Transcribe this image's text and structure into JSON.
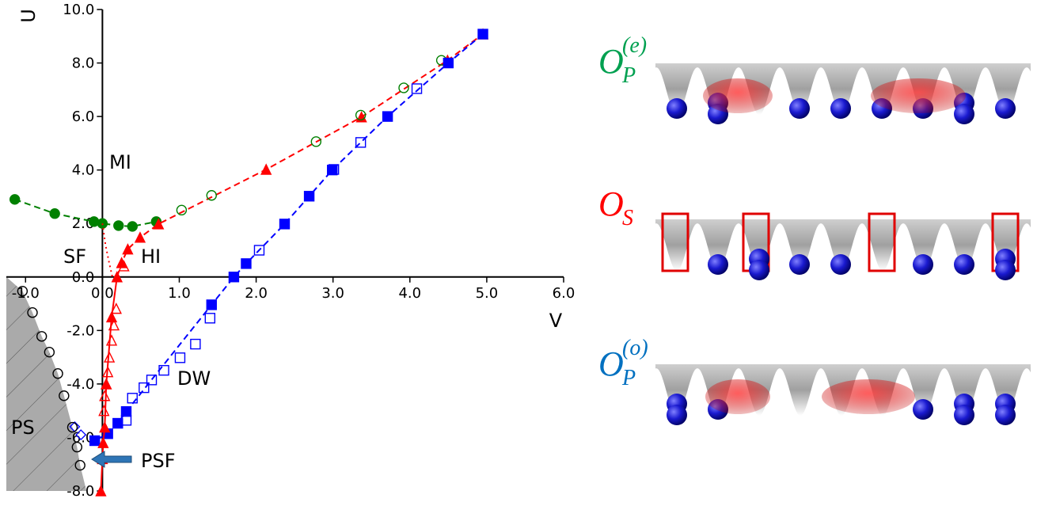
{
  "chart_data": {
    "type": "scatter",
    "xlabel": "V",
    "ylabel": "U",
    "xlim": [
      -1.25,
      6.0
    ],
    "ylim": [
      -8,
      10
    ],
    "xticks": [
      {
        "value": -1,
        "label": "-1.0"
      },
      {
        "value": 0,
        "label": "0.0"
      },
      {
        "value": 1,
        "label": "1.0"
      },
      {
        "value": 2,
        "label": "2.0"
      },
      {
        "value": 3,
        "label": "3.0"
      },
      {
        "value": 4,
        "label": "4.0"
      },
      {
        "value": 5,
        "label": "5.0"
      },
      {
        "value": 6,
        "label": "6.0"
      }
    ],
    "yticks": [
      {
        "value": -8,
        "label": "-8.0"
      },
      {
        "value": -6,
        "label": "-6.0"
      },
      {
        "value": -4,
        "label": "-4.0"
      },
      {
        "value": -2,
        "label": "-2.0"
      },
      {
        "value": 0,
        "label": "0.0"
      },
      {
        "value": 2,
        "label": "2.0"
      },
      {
        "value": 4,
        "label": "4.0"
      },
      {
        "value": 6,
        "label": "6.0"
      },
      {
        "value": 8,
        "label": "8.0"
      },
      {
        "value": 10,
        "label": "10.0"
      }
    ],
    "series": [
      {
        "color": "#008000",
        "marker": "circle",
        "filled": true,
        "linestyle": "dashed",
        "x": [
          -1.14,
          -0.62,
          -0.11,
          0.0,
          0.21,
          0.39,
          0.7
        ],
        "y": [
          2.9,
          2.37,
          2.07,
          2.0,
          1.92,
          1.89,
          2.07
        ]
      },
      {
        "color": "#ff0000",
        "marker": "triangle",
        "filled": true,
        "linestyle": "dashed",
        "x": [
          0.19,
          0.25,
          0.33,
          0.49,
          0.73,
          2.13,
          3.37,
          4.49,
          4.95
        ],
        "y": [
          0,
          0.53,
          1.04,
          1.48,
          1.98,
          4.02,
          5.98,
          8.1,
          9.08
        ]
      },
      {
        "color": "#008000",
        "marker": "circle",
        "filled": false,
        "linestyle": "none",
        "x": [
          1.03,
          1.42,
          2.78,
          3.36,
          3.92,
          4.41
        ],
        "y": [
          2.5,
          3.05,
          5.06,
          6.05,
          7.07,
          8.1
        ]
      },
      {
        "color": "#0000ff",
        "marker": "square",
        "filled": true,
        "linestyle": "dashed",
        "x": [
          4.95,
          4.5,
          3.71,
          2.99,
          2.69,
          2.37,
          1.87,
          1.71,
          1.42,
          0.31,
          0.2,
          0.07,
          -0.1
        ],
        "y": [
          9.08,
          8.0,
          6.0,
          4.0,
          3.02,
          1.98,
          0.5,
          0,
          -1.04,
          -5.03,
          -5.47,
          -5.86,
          -6.12
        ]
      },
      {
        "color": "#0000ff",
        "marker": "square",
        "filled": false,
        "linestyle": "none",
        "x": [
          4.09,
          3.36,
          3.01,
          2.04,
          1.4,
          1.21,
          1.01,
          0.8,
          0.64,
          0.54,
          0.39,
          0.31
        ],
        "y": [
          7.04,
          5.03,
          4.02,
          1.0,
          -1.54,
          -2.51,
          -3.02,
          -3.49,
          -3.85,
          -4.14,
          -4.53,
          -5.36
        ]
      },
      {
        "color": "#0000ff",
        "marker": "diamond",
        "filled": false,
        "linestyle": "none",
        "x": [
          -0.36,
          -0.28
        ],
        "y": [
          -5.6,
          -5.9
        ]
      },
      {
        "color": "#ff0000",
        "marker": "triangle",
        "filled": false,
        "linestyle": "none",
        "x": [
          0.28,
          0.18,
          0.15,
          0.12,
          0.09,
          0.07,
          0.05,
          0.03,
          0.02
        ],
        "y": [
          0.41,
          -1.18,
          -1.8,
          -2.37,
          -3.0,
          -3.55,
          -4.0,
          -4.44,
          -5.0
        ]
      },
      {
        "color": "#ff0000",
        "marker": "triangle",
        "filled": true,
        "linestyle": "solid",
        "x": [
          0.19,
          0.12,
          0.05,
          0.03,
          0.01,
          0.0,
          -0.02
        ],
        "y": [
          0,
          -1.5,
          -4,
          -5.62,
          -6.2,
          -6.8,
          -8
        ]
      },
      {
        "color": "#ff0000",
        "marker": "none",
        "linestyle": "dotted",
        "x": [
          0.0,
          0.04,
          0.09,
          0.13
        ],
        "y": [
          2.0,
          1.2,
          0.5,
          0
        ]
      },
      {
        "color": "#000000",
        "marker": "circle",
        "filled": false,
        "linestyle": "none",
        "shaded": true,
        "x": [
          -1.04,
          -0.91,
          -0.79,
          -0.69,
          -0.58,
          -0.5,
          -0.39,
          -0.33,
          -0.29
        ],
        "y": [
          -0.53,
          -1.33,
          -2.22,
          -2.81,
          -3.61,
          -4.44,
          -5.62,
          -6.36,
          -7.04
        ]
      }
    ],
    "annotations": [
      "MI",
      "SF",
      "HI",
      "DW",
      "PS",
      "PSF"
    ]
  },
  "panels": [
    {
      "symbol": "O",
      "subscript": "P",
      "superscript": "(e)",
      "color": "#00a050"
    },
    {
      "symbol": "O",
      "subscript": "S",
      "color": "#ff0000"
    },
    {
      "symbol": "O",
      "subscript": "P",
      "superscript": "(o)",
      "color": "#0070c0"
    }
  ]
}
